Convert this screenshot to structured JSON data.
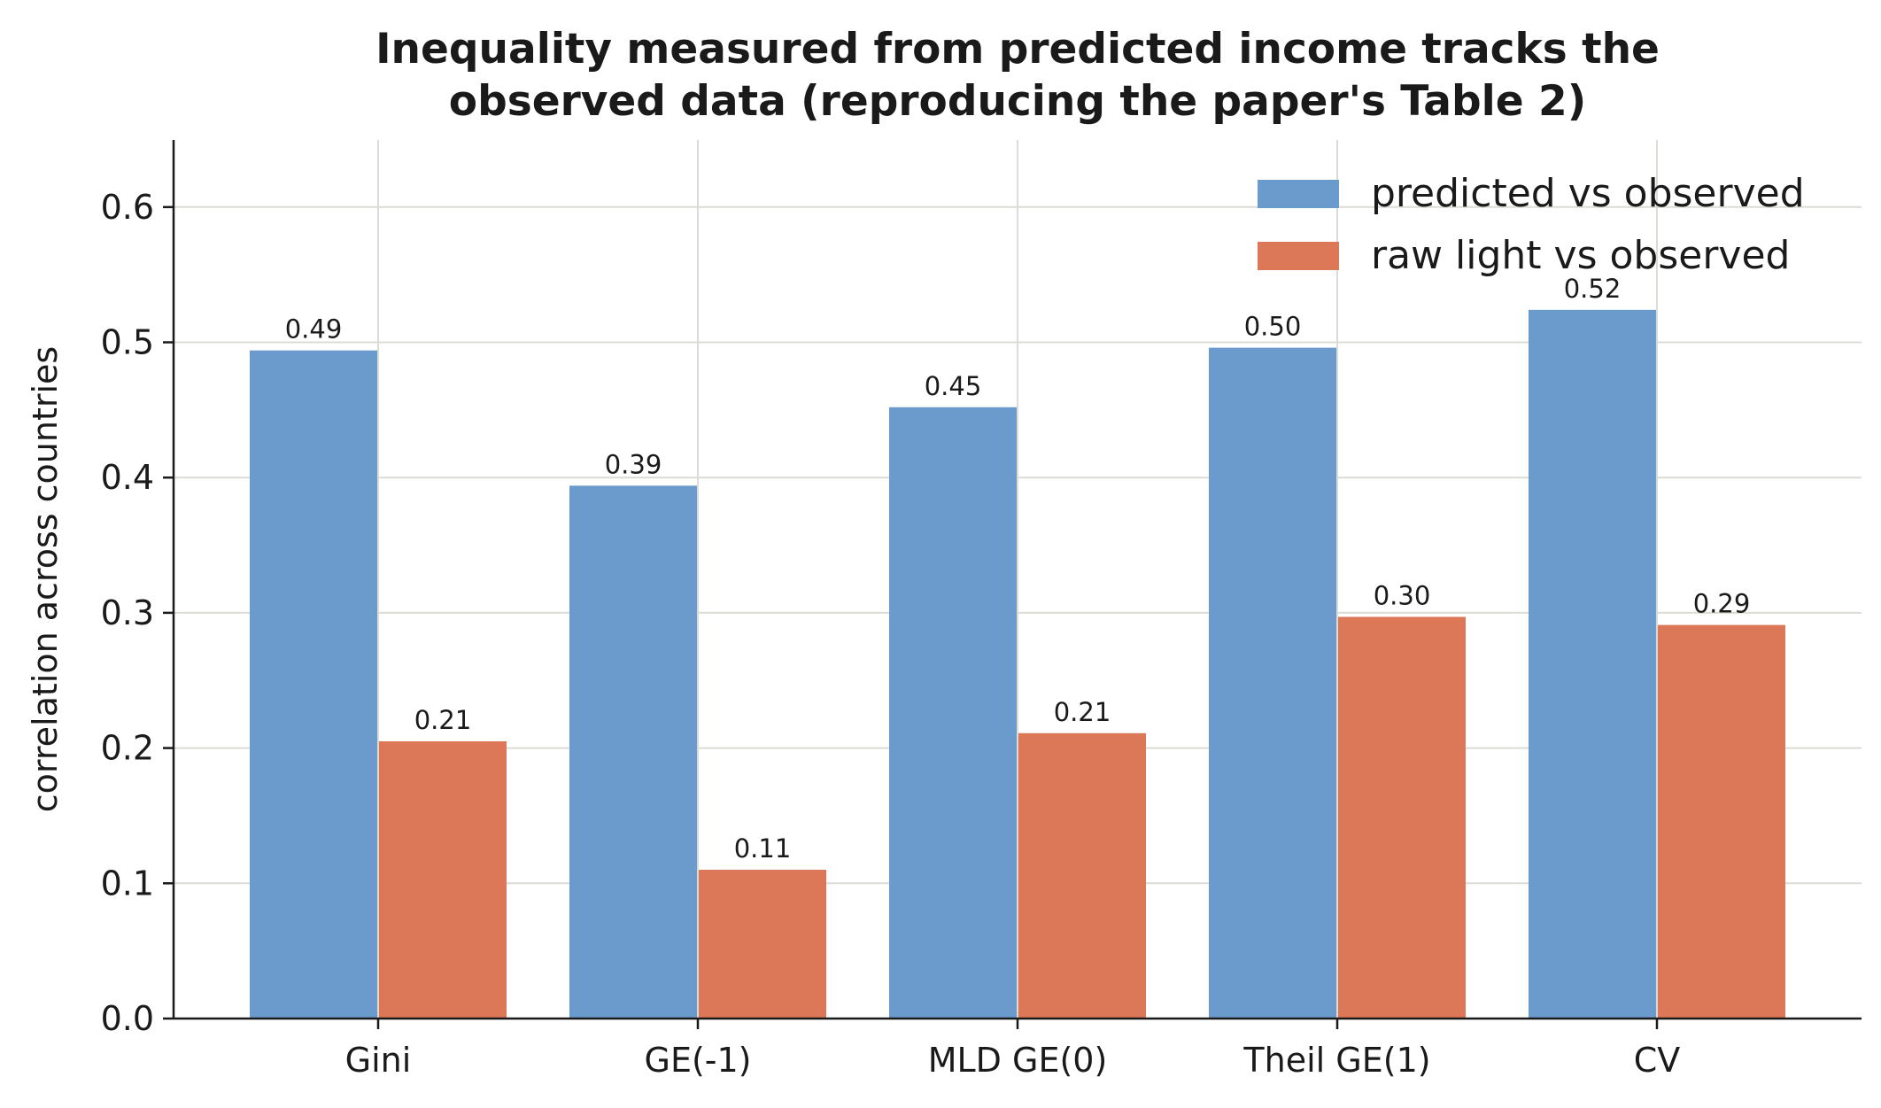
{
  "chart_data": {
    "type": "bar",
    "title": [
      "Inequality measured from predicted income tracks the",
      "observed data (reproducing the paper's Table 2)"
    ],
    "xlabel": "",
    "ylabel": "correlation across countries",
    "categories": [
      "Gini",
      "GE(-1)",
      "MLD GE(0)",
      "Theil GE(1)",
      "CV"
    ],
    "series": [
      {
        "name": "predicted vs observed",
        "color": "#6b9bcd",
        "values": [
          0.494,
          0.394,
          0.452,
          0.496,
          0.524
        ],
        "labels": [
          "0.49",
          "0.39",
          "0.45",
          "0.50",
          "0.52"
        ]
      },
      {
        "name": "raw light vs observed",
        "color": "#dc7757",
        "values": [
          0.205,
          0.11,
          0.211,
          0.297,
          0.291
        ],
        "labels": [
          "0.21",
          "0.11",
          "0.21",
          "0.30",
          "0.29"
        ]
      }
    ],
    "ylim": [
      0,
      0.65
    ],
    "yticks": [
      0.0,
      0.1,
      0.2,
      0.3,
      0.4,
      0.5,
      0.6
    ],
    "ytick_labels": [
      "0.0",
      "0.1",
      "0.2",
      "0.3",
      "0.4",
      "0.5",
      "0.6"
    ],
    "grid": true,
    "legend": "top-right"
  }
}
